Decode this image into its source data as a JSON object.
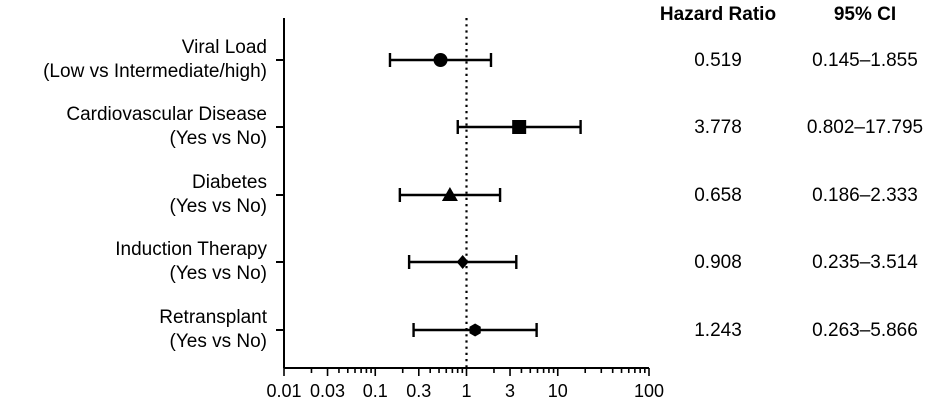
{
  "chart_data": {
    "type": "forest",
    "x_scale": "log",
    "xlim": [
      0.01,
      100
    ],
    "x_ticks": [
      "0.01",
      "0.03",
      "0.1",
      "0.3",
      "1",
      "3",
      "10",
      "100"
    ],
    "x_tick_values": [
      0.01,
      0.03,
      0.1,
      0.3,
      1,
      3,
      10,
      100
    ],
    "reference_line": 1,
    "columns": [
      "Hazard Ratio",
      "95% CI"
    ],
    "rows": [
      {
        "label_line1": "Viral Load",
        "label_line2": "(Low vs Intermediate/high)",
        "hr": 0.519,
        "ci_low": 0.145,
        "ci_high": 1.855,
        "hr_text": "0.519",
        "ci_text": "0.145–1.855",
        "marker": "circle"
      },
      {
        "label_line1": "Cardiovascular Disease",
        "label_line2": "(Yes vs No)",
        "hr": 3.778,
        "ci_low": 0.802,
        "ci_high": 17.795,
        "hr_text": "3.778",
        "ci_text": "0.802–17.795",
        "marker": "square"
      },
      {
        "label_line1": "Diabetes",
        "label_line2": "(Yes vs No)",
        "hr": 0.658,
        "ci_low": 0.186,
        "ci_high": 2.333,
        "hr_text": "0.658",
        "ci_text": "0.186–2.333",
        "marker": "triangle"
      },
      {
        "label_line1": "Induction Therapy",
        "label_line2": "(Yes vs No)",
        "hr": 0.908,
        "ci_low": 0.235,
        "ci_high": 3.514,
        "hr_text": "0.908",
        "ci_text": "0.235–3.514",
        "marker": "diamond"
      },
      {
        "label_line1": "Retransplant",
        "label_line2": "(Yes vs No)",
        "hr": 1.243,
        "ci_low": 0.263,
        "ci_high": 5.866,
        "hr_text": "1.243",
        "ci_text": "0.263–5.866",
        "marker": "hexagon"
      }
    ]
  }
}
